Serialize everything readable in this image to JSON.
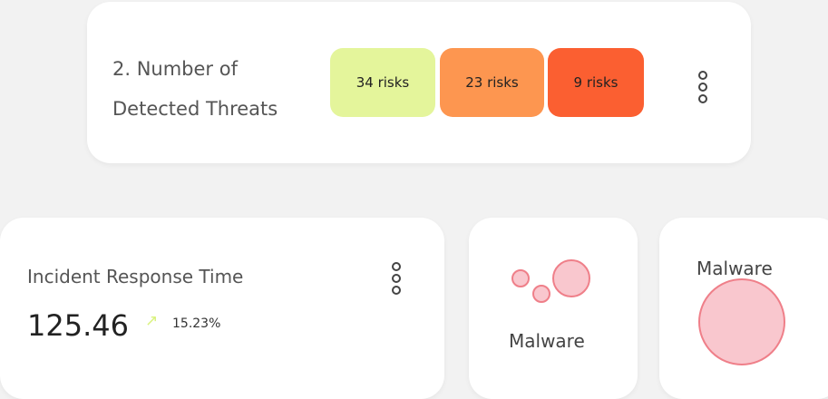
{
  "threats_card": {
    "title_line1": "2. Number of",
    "title_line2": "Detected Threats",
    "badges": [
      {
        "label": "34 risks",
        "color": "#e4f59b"
      },
      {
        "label": "23 risks",
        "color": "#fd9650"
      },
      {
        "label": "9 risks",
        "color": "#fb5f31"
      }
    ]
  },
  "response_card": {
    "title": "Incident Response Time",
    "value": "125.46",
    "trend_icon": "arrow-up-right-icon",
    "change": "15.23%"
  },
  "bubble_card_small": {
    "label": "Malware"
  },
  "bubble_card_large": {
    "label": "Malware"
  },
  "colors": {
    "bubble_fill": "#f9c7ce",
    "bubble_stroke": "#ef7f89",
    "trend": "#d9f27d"
  }
}
